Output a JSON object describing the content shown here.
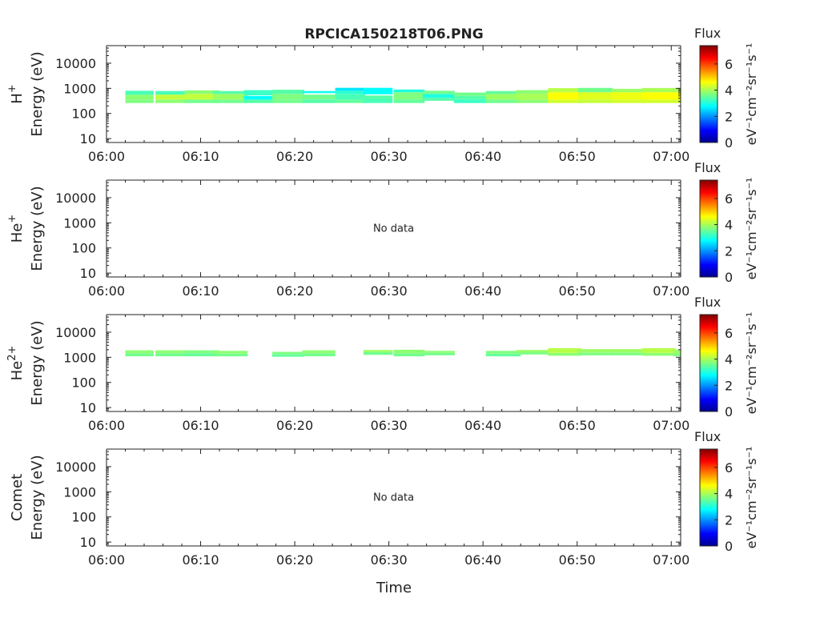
{
  "title": "RPCICA150218T06.PNG",
  "xlabel": "Time",
  "colorbar": {
    "title": "Flux",
    "units_label": "eV⁻¹cm⁻²sr⁻¹s⁻¹",
    "ticks": [
      "0",
      "2",
      "4",
      "6"
    ],
    "range": [
      0,
      7.4
    ],
    "colormap": "jet"
  },
  "x_ticks": [
    "06:00",
    "06:10",
    "06:20",
    "06:30",
    "06:40",
    "06:50",
    "07:00"
  ],
  "y_ticks": [
    "10",
    "100",
    "1000",
    "10000"
  ],
  "no_data_label": "No data",
  "chart_data": [
    {
      "type": "heatmap",
      "species": "H",
      "species_sup": "+",
      "ylabel": "Energy (eV)",
      "x_range_min": [
        0,
        61
      ],
      "y_range_ev": [
        7,
        50000
      ],
      "y_scale": "log",
      "has_data": true,
      "cells": [
        {
          "t0": 2,
          "t1": 5,
          "e0": 260,
          "e1": 360,
          "v": 3.7
        },
        {
          "t0": 2,
          "t1": 5,
          "e0": 360,
          "e1": 560,
          "v": 3.8
        },
        {
          "t0": 2,
          "t1": 5,
          "e0": 560,
          "e1": 800,
          "v": 3.3
        },
        {
          "t0": 5.2,
          "t1": 8.5,
          "e0": 260,
          "e1": 360,
          "v": 3.8
        },
        {
          "t0": 5.2,
          "t1": 8.5,
          "e0": 360,
          "e1": 560,
          "v": 4.2
        },
        {
          "t0": 5.2,
          "t1": 8.5,
          "e0": 560,
          "e1": 780,
          "v": 3.3
        },
        {
          "t0": 8.3,
          "t1": 12,
          "e0": 260,
          "e1": 360,
          "v": 3.6
        },
        {
          "t0": 8.3,
          "t1": 12,
          "e0": 360,
          "e1": 600,
          "v": 4.2
        },
        {
          "t0": 8.3,
          "t1": 12,
          "e0": 600,
          "e1": 830,
          "v": 3.8
        },
        {
          "t0": 11.3,
          "t1": 15,
          "e0": 260,
          "e1": 360,
          "v": 3.6
        },
        {
          "t0": 11.3,
          "t1": 15,
          "e0": 360,
          "e1": 600,
          "v": 3.9
        },
        {
          "t0": 11.3,
          "t1": 15,
          "e0": 600,
          "e1": 780,
          "v": 3.4
        },
        {
          "t0": 14.6,
          "t1": 18,
          "e0": 260,
          "e1": 360,
          "v": 3.4
        },
        {
          "t0": 14.6,
          "t1": 18,
          "e0": 360,
          "e1": 500,
          "v": 2.8
        },
        {
          "t0": 14.6,
          "t1": 18,
          "e0": 530,
          "e1": 850,
          "v": 3.2
        },
        {
          "t0": 17.6,
          "t1": 21,
          "e0": 260,
          "e1": 360,
          "v": 3.6
        },
        {
          "t0": 17.6,
          "t1": 21,
          "e0": 360,
          "e1": 600,
          "v": 3.7
        },
        {
          "t0": 17.6,
          "t1": 21,
          "e0": 600,
          "e1": 880,
          "v": 3.4
        },
        {
          "t0": 20.8,
          "t1": 24.3,
          "e0": 260,
          "e1": 360,
          "v": 3.4
        },
        {
          "t0": 20.8,
          "t1": 24.3,
          "e0": 360,
          "e1": 560,
          "v": 3.6
        },
        {
          "t0": 20.8,
          "t1": 24.3,
          "e0": 640,
          "e1": 780,
          "v": 2.9
        },
        {
          "t0": 24.3,
          "t1": 27.5,
          "e0": 260,
          "e1": 360,
          "v": 3.5
        },
        {
          "t0": 24.3,
          "t1": 27.5,
          "e0": 360,
          "e1": 600,
          "v": 3.3
        },
        {
          "t0": 24.3,
          "t1": 27.5,
          "e0": 600,
          "e1": 800,
          "v": 3.1
        },
        {
          "t0": 24.3,
          "t1": 27.5,
          "e0": 800,
          "e1": 1050,
          "v": 2.6
        },
        {
          "t0": 27.3,
          "t1": 30.4,
          "e0": 260,
          "e1": 380,
          "v": 3.3
        },
        {
          "t0": 27.3,
          "t1": 30.4,
          "e0": 380,
          "e1": 520,
          "v": 3.4
        },
        {
          "t0": 27.3,
          "t1": 30.4,
          "e0": 580,
          "e1": 1050,
          "v": 2.8
        },
        {
          "t0": 30.5,
          "t1": 33.8,
          "e0": 260,
          "e1": 360,
          "v": 3.5
        },
        {
          "t0": 30.5,
          "t1": 33.8,
          "e0": 360,
          "e1": 700,
          "v": 3.7
        },
        {
          "t0": 30.5,
          "t1": 33.8,
          "e0": 700,
          "e1": 900,
          "v": 3.0
        },
        {
          "t0": 33.6,
          "t1": 37,
          "e0": 320,
          "e1": 420,
          "v": 3.4
        },
        {
          "t0": 33.6,
          "t1": 37,
          "e0": 420,
          "e1": 600,
          "v": 3.0
        },
        {
          "t0": 33.6,
          "t1": 37,
          "e0": 600,
          "e1": 800,
          "v": 3.6
        },
        {
          "t0": 36.9,
          "t1": 40.5,
          "e0": 260,
          "e1": 360,
          "v": 3.2
        },
        {
          "t0": 36.9,
          "t1": 40.5,
          "e0": 360,
          "e1": 500,
          "v": 3.4
        },
        {
          "t0": 36.9,
          "t1": 40.5,
          "e0": 500,
          "e1": 680,
          "v": 3.6
        },
        {
          "t0": 40.3,
          "t1": 44,
          "e0": 260,
          "e1": 360,
          "v": 3.6
        },
        {
          "t0": 40.3,
          "t1": 44,
          "e0": 360,
          "e1": 600,
          "v": 3.9
        },
        {
          "t0": 40.3,
          "t1": 44,
          "e0": 600,
          "e1": 780,
          "v": 3.5
        },
        {
          "t0": 43.5,
          "t1": 47,
          "e0": 260,
          "e1": 360,
          "v": 3.8
        },
        {
          "t0": 43.5,
          "t1": 47,
          "e0": 360,
          "e1": 600,
          "v": 4.0
        },
        {
          "t0": 43.5,
          "t1": 47,
          "e0": 600,
          "e1": 850,
          "v": 3.8
        },
        {
          "t0": 46.9,
          "t1": 50.5,
          "e0": 260,
          "e1": 360,
          "v": 4.3
        },
        {
          "t0": 46.9,
          "t1": 50.5,
          "e0": 360,
          "e1": 700,
          "v": 4.6
        },
        {
          "t0": 46.9,
          "t1": 50.5,
          "e0": 700,
          "e1": 1020,
          "v": 4.1
        },
        {
          "t0": 50.1,
          "t1": 53.8,
          "e0": 260,
          "e1": 360,
          "v": 4.2
        },
        {
          "t0": 50.1,
          "t1": 53.8,
          "e0": 360,
          "e1": 700,
          "v": 4.4
        },
        {
          "t0": 50.1,
          "t1": 53.8,
          "e0": 700,
          "e1": 1040,
          "v": 3.6
        },
        {
          "t0": 53.6,
          "t1": 57.3,
          "e0": 260,
          "e1": 360,
          "v": 4.3
        },
        {
          "t0": 53.6,
          "t1": 57.3,
          "e0": 360,
          "e1": 700,
          "v": 4.5
        },
        {
          "t0": 53.6,
          "t1": 57.3,
          "e0": 700,
          "e1": 950,
          "v": 3.9
        },
        {
          "t0": 56.9,
          "t1": 60.5,
          "e0": 260,
          "e1": 360,
          "v": 4.3
        },
        {
          "t0": 56.9,
          "t1": 60.5,
          "e0": 360,
          "e1": 700,
          "v": 4.6
        },
        {
          "t0": 56.9,
          "t1": 60.5,
          "e0": 700,
          "e1": 1030,
          "v": 4.0
        },
        {
          "t0": 60.2,
          "t1": 61,
          "e0": 260,
          "e1": 360,
          "v": 4.3
        },
        {
          "t0": 60.2,
          "t1": 61,
          "e0": 360,
          "e1": 700,
          "v": 4.6
        },
        {
          "t0": 60.2,
          "t1": 61,
          "e0": 700,
          "e1": 1030,
          "v": 4.0
        }
      ]
    },
    {
      "type": "heatmap",
      "species": "He",
      "species_sup": "+",
      "ylabel": "Energy (eV)",
      "x_range_min": [
        0,
        61
      ],
      "y_range_ev": [
        7,
        50000
      ],
      "y_scale": "log",
      "has_data": false,
      "cells": []
    },
    {
      "type": "heatmap",
      "species": "He",
      "species_sup": "2+",
      "ylabel": "Energy (eV)",
      "x_range_min": [
        0,
        61
      ],
      "y_range_ev": [
        7,
        50000
      ],
      "y_scale": "log",
      "has_data": true,
      "cells": [
        {
          "t0": 2,
          "t1": 5,
          "e0": 1100,
          "e1": 1450,
          "v": 3.6
        },
        {
          "t0": 2,
          "t1": 5,
          "e0": 1450,
          "e1": 1900,
          "v": 3.8
        },
        {
          "t0": 5.2,
          "t1": 8.5,
          "e0": 1100,
          "e1": 1450,
          "v": 3.6
        },
        {
          "t0": 5.2,
          "t1": 8.5,
          "e0": 1450,
          "e1": 1900,
          "v": 3.8
        },
        {
          "t0": 8.3,
          "t1": 12,
          "e0": 1100,
          "e1": 1450,
          "v": 3.5
        },
        {
          "t0": 8.3,
          "t1": 12,
          "e0": 1450,
          "e1": 1900,
          "v": 3.7
        },
        {
          "t0": 11.3,
          "t1": 15,
          "e0": 1100,
          "e1": 1400,
          "v": 3.6
        },
        {
          "t0": 11.3,
          "t1": 15,
          "e0": 1400,
          "e1": 1800,
          "v": 3.8
        },
        {
          "t0": 17.6,
          "t1": 21,
          "e0": 1050,
          "e1": 1350,
          "v": 3.5
        },
        {
          "t0": 17.6,
          "t1": 21,
          "e0": 1350,
          "e1": 1650,
          "v": 3.7
        },
        {
          "t0": 20.8,
          "t1": 24.3,
          "e0": 1100,
          "e1": 1450,
          "v": 3.6
        },
        {
          "t0": 20.8,
          "t1": 24.3,
          "e0": 1450,
          "e1": 1900,
          "v": 3.8
        },
        {
          "t0": 27.3,
          "t1": 30.4,
          "e0": 1250,
          "e1": 1600,
          "v": 3.6
        },
        {
          "t0": 27.3,
          "t1": 30.4,
          "e0": 1600,
          "e1": 1950,
          "v": 3.9
        },
        {
          "t0": 30.5,
          "t1": 33.8,
          "e0": 1100,
          "e1": 1450,
          "v": 3.6
        },
        {
          "t0": 30.5,
          "t1": 33.8,
          "e0": 1450,
          "e1": 2000,
          "v": 3.8
        },
        {
          "t0": 33.6,
          "t1": 37,
          "e0": 1200,
          "e1": 1500,
          "v": 3.6
        },
        {
          "t0": 33.6,
          "t1": 37,
          "e0": 1500,
          "e1": 1800,
          "v": 3.8
        },
        {
          "t0": 40.3,
          "t1": 44,
          "e0": 1100,
          "e1": 1400,
          "v": 3.5
        },
        {
          "t0": 40.3,
          "t1": 44,
          "e0": 1400,
          "e1": 1800,
          "v": 3.7
        },
        {
          "t0": 43.5,
          "t1": 47,
          "e0": 1300,
          "e1": 1650,
          "v": 3.7
        },
        {
          "t0": 43.5,
          "t1": 47,
          "e0": 1650,
          "e1": 1950,
          "v": 3.9
        },
        {
          "t0": 46.9,
          "t1": 50.5,
          "e0": 1150,
          "e1": 1500,
          "v": 3.8
        },
        {
          "t0": 46.9,
          "t1": 50.5,
          "e0": 1500,
          "e1": 2300,
          "v": 4.1
        },
        {
          "t0": 50.1,
          "t1": 53.8,
          "e0": 1200,
          "e1": 1550,
          "v": 3.7
        },
        {
          "t0": 50.1,
          "t1": 53.8,
          "e0": 1550,
          "e1": 2100,
          "v": 3.9
        },
        {
          "t0": 53.6,
          "t1": 57.3,
          "e0": 1200,
          "e1": 1550,
          "v": 3.7
        },
        {
          "t0": 53.6,
          "t1": 57.3,
          "e0": 1550,
          "e1": 2100,
          "v": 3.9
        },
        {
          "t0": 56.9,
          "t1": 60.5,
          "e0": 1150,
          "e1": 1500,
          "v": 3.8
        },
        {
          "t0": 56.9,
          "t1": 60.5,
          "e0": 1500,
          "e1": 2300,
          "v": 4.1
        },
        {
          "t0": 60.2,
          "t1": 61,
          "e0": 1100,
          "e1": 1450,
          "v": 3.7
        },
        {
          "t0": 60.2,
          "t1": 61,
          "e0": 1450,
          "e1": 2000,
          "v": 3.9
        }
      ]
    },
    {
      "type": "heatmap",
      "species": "Comet",
      "species_sup": "",
      "ylabel": "Energy (eV)",
      "x_range_min": [
        0,
        61
      ],
      "y_range_ev": [
        7,
        50000
      ],
      "y_scale": "log",
      "has_data": false,
      "cells": []
    }
  ]
}
